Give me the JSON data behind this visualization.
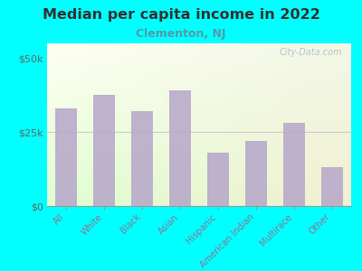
{
  "title": "Median per capita income in 2022",
  "subtitle": "Clementon, NJ",
  "categories": [
    "All",
    "White",
    "Black",
    "Asian",
    "Hispanic",
    "American Indian",
    "Multirace",
    "Other"
  ],
  "values": [
    33000,
    37500,
    32000,
    39000,
    18000,
    22000,
    28000,
    13000
  ],
  "bar_color": "#b8a8ca",
  "background_outer": "#00FFFF",
  "title_color": "#333333",
  "subtitle_color": "#5599aa",
  "ytick_labels": [
    "$0",
    "$25k",
    "$50k"
  ],
  "ytick_values": [
    0,
    25000,
    50000
  ],
  "ylim": [
    0,
    55000
  ],
  "watermark": "City-Data.com",
  "xlabel_color": "#887799",
  "ylabel_color": "#666666",
  "grid_color": "#cccccc"
}
